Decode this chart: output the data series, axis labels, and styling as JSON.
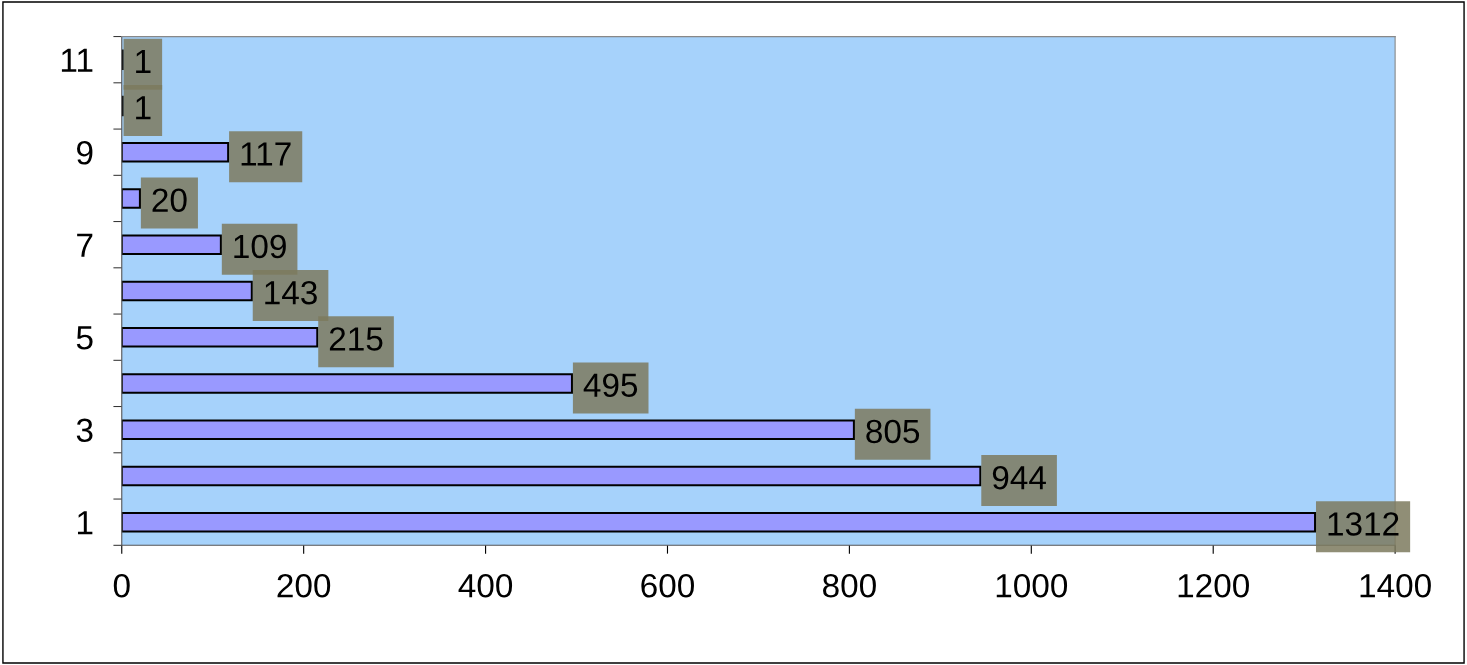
{
  "chart_data": {
    "type": "bar",
    "orientation": "horizontal",
    "categories": [
      "11",
      null,
      "9",
      null,
      "7",
      null,
      "5",
      null,
      "3",
      null,
      "1"
    ],
    "values": [
      1,
      1,
      117,
      20,
      109,
      143,
      215,
      495,
      805,
      944,
      1312
    ],
    "color": "#9999ff",
    "xlim": [
      0,
      1400
    ],
    "xticks": [
      0,
      200,
      400,
      600,
      800,
      1000,
      1200,
      1400
    ],
    "data_labels": true
  }
}
